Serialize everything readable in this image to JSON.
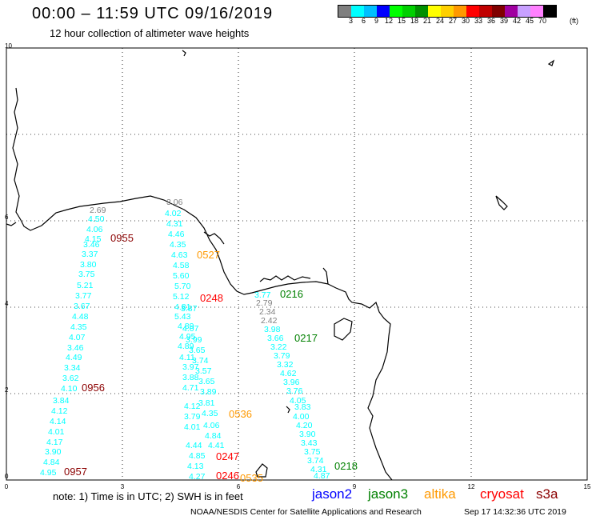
{
  "header": {
    "title": "00:00 – 11:59 UTC 09/16/2019",
    "subtitle": "12 hour collection of altimeter wave heights"
  },
  "scale": {
    "unit": "(ft)",
    "colors": [
      "#7f7f7f",
      "#00ffff",
      "#00bfff",
      "#0000ff",
      "#00ff00",
      "#00d000",
      "#009000",
      "#ffff00",
      "#ffd000",
      "#ff9900",
      "#ff0000",
      "#c00000",
      "#800000",
      "#a000a0",
      "#c8a0ff",
      "#ff80ff",
      "#000000"
    ],
    "labels": [
      "3",
      "6",
      "9",
      "12",
      "15",
      "18",
      "21",
      "24",
      "27",
      "30",
      "33",
      "36",
      "39",
      "42",
      "45",
      "70"
    ]
  },
  "axes": {
    "x_ticks": [
      "0",
      "3",
      "6",
      "9",
      "12",
      "15"
    ],
    "y_ticks": [
      "10",
      "6",
      "4",
      "2",
      "0"
    ]
  },
  "wave_heights": [
    {
      "text": "2.69",
      "color": "#7f7f7f"
    },
    {
      "text": "4.50",
      "color": "#00ffff"
    },
    {
      "text": "4.06",
      "color": "#00ffff"
    },
    {
      "text": "4.15",
      "color": "#00ffff"
    },
    {
      "text": "3.46",
      "color": "#00ffff"
    },
    {
      "text": "3.37",
      "color": "#00ffff"
    },
    {
      "text": "3.80",
      "color": "#00ffff"
    },
    {
      "text": "3.75",
      "color": "#00ffff"
    },
    {
      "text": "5.21",
      "color": "#00ffff"
    },
    {
      "text": "3.77",
      "color": "#00ffff"
    },
    {
      "text": "3.67",
      "color": "#00ffff"
    },
    {
      "text": "4.48",
      "color": "#00ffff"
    },
    {
      "text": "4.35",
      "color": "#00ffff"
    },
    {
      "text": "4.07",
      "color": "#00ffff"
    },
    {
      "text": "3.46",
      "color": "#00ffff"
    },
    {
      "text": "4.49",
      "color": "#00ffff"
    },
    {
      "text": "3.34",
      "color": "#00ffff"
    },
    {
      "text": "3.62",
      "color": "#00ffff"
    },
    {
      "text": "4.10",
      "color": "#00ffff"
    },
    {
      "text": "3.84",
      "color": "#00ffff"
    },
    {
      "text": "4.12",
      "color": "#00ffff"
    },
    {
      "text": "4.14",
      "color": "#00ffff"
    },
    {
      "text": "4.01",
      "color": "#00ffff"
    },
    {
      "text": "4.17",
      "color": "#00ffff"
    },
    {
      "text": "3.90",
      "color": "#00ffff"
    },
    {
      "text": "4.84",
      "color": "#00ffff"
    },
    {
      "text": "4.95",
      "color": "#00ffff"
    },
    {
      "text": "3.06",
      "color": "#7f7f7f"
    },
    {
      "text": "4.02",
      "color": "#00ffff"
    },
    {
      "text": "4.31",
      "color": "#00ffff"
    },
    {
      "text": "4.46",
      "color": "#00ffff"
    },
    {
      "text": "4.35",
      "color": "#00ffff"
    },
    {
      "text": "4.63",
      "color": "#00ffff"
    },
    {
      "text": "4.58",
      "color": "#00ffff"
    },
    {
      "text": "5.60",
      "color": "#00ffff"
    },
    {
      "text": "5.70",
      "color": "#00ffff"
    },
    {
      "text": "5.12",
      "color": "#00ffff"
    },
    {
      "text": "4.81",
      "color": "#00ffff"
    },
    {
      "text": "5.43",
      "color": "#00ffff"
    },
    {
      "text": "3.87",
      "color": "#00ffff"
    },
    {
      "text": "4.07",
      "color": "#00ffff"
    },
    {
      "text": "4.89",
      "color": "#00ffff"
    },
    {
      "text": "3.99",
      "color": "#00ffff"
    },
    {
      "text": "4.95",
      "color": "#00ffff"
    },
    {
      "text": "3.65",
      "color": "#00ffff"
    },
    {
      "text": "4.89",
      "color": "#00ffff"
    },
    {
      "text": "3.74",
      "color": "#00ffff"
    },
    {
      "text": "4.11",
      "color": "#00ffff"
    },
    {
      "text": "3.57",
      "color": "#00ffff"
    },
    {
      "text": "3.97",
      "color": "#00ffff"
    },
    {
      "text": "3.65",
      "color": "#00ffff"
    },
    {
      "text": "3.88",
      "color": "#00ffff"
    },
    {
      "text": "3.89",
      "color": "#00ffff"
    },
    {
      "text": "4.71",
      "color": "#00ffff"
    },
    {
      "text": "3.81",
      "color": "#00ffff"
    },
    {
      "text": "4.12",
      "color": "#00ffff"
    },
    {
      "text": "4.35",
      "color": "#00ffff"
    },
    {
      "text": "3.79",
      "color": "#00ffff"
    },
    {
      "text": "4.06",
      "color": "#00ffff"
    },
    {
      "text": "4.01",
      "color": "#00ffff"
    },
    {
      "text": "4.84",
      "color": "#00ffff"
    },
    {
      "text": "4.44",
      "color": "#00ffff"
    },
    {
      "text": "4.41",
      "color": "#00ffff"
    },
    {
      "text": "4.13",
      "color": "#00ffff"
    },
    {
      "text": "4.85",
      "color": "#00ffff"
    },
    {
      "text": "4.27",
      "color": "#00ffff"
    },
    {
      "text": "4.35",
      "color": "#00ffff"
    },
    {
      "text": "4.99",
      "color": "#00ffff"
    },
    {
      "text": "2.79",
      "color": "#7f7f7f"
    },
    {
      "text": "2.34",
      "color": "#7f7f7f"
    },
    {
      "text": "2.42",
      "color": "#7f7f7f"
    },
    {
      "text": "3.98",
      "color": "#00ffff"
    },
    {
      "text": "3.66",
      "color": "#00ffff"
    },
    {
      "text": "3.22",
      "color": "#00ffff"
    },
    {
      "text": "3.79",
      "color": "#00ffff"
    },
    {
      "text": "3.32",
      "color": "#00ffff"
    },
    {
      "text": "4.62",
      "color": "#00ffff"
    },
    {
      "text": "3.96",
      "color": "#00ffff"
    },
    {
      "text": "3.76",
      "color": "#00ffff"
    },
    {
      "text": "4.05",
      "color": "#00ffff"
    },
    {
      "text": "3.83",
      "color": "#00ffff"
    },
    {
      "text": "4.00",
      "color": "#00ffff"
    },
    {
      "text": "4.20",
      "color": "#00ffff"
    },
    {
      "text": "3.90",
      "color": "#00ffff"
    },
    {
      "text": "3.43",
      "color": "#00ffff"
    },
    {
      "text": "3.75",
      "color": "#00ffff"
    },
    {
      "text": "3.74",
      "color": "#00ffff"
    },
    {
      "text": "4.31",
      "color": "#00ffff"
    },
    {
      "text": "4.87",
      "color": "#00ffff"
    },
    {
      "text": "3.77",
      "color": "#00ffff"
    }
  ],
  "pass_times": [
    {
      "text": "0955",
      "color": "#8b0000"
    },
    {
      "text": "0527",
      "color": "#ff9900"
    },
    {
      "text": "0248",
      "color": "#ff0000"
    },
    {
      "text": "0216",
      "color": "#008000"
    },
    {
      "text": "0217",
      "color": "#008000"
    },
    {
      "text": "0956",
      "color": "#8b0000"
    },
    {
      "text": "0536",
      "color": "#ff9900"
    },
    {
      "text": "0247",
      "color": "#ff0000"
    },
    {
      "text": "0246",
      "color": "#ff0000"
    },
    {
      "text": "0535",
      "color": "#ff9900"
    },
    {
      "text": "0957",
      "color": "#8b0000"
    },
    {
      "text": "0218",
      "color": "#008000"
    }
  ],
  "footer": {
    "note": "note:  1) Time is in UTC;  2) SWH is in feet",
    "satellites": [
      {
        "name": "jason2",
        "color": "#0000ff"
      },
      {
        "name": "jason3",
        "color": "#008000"
      },
      {
        "name": "altika",
        "color": "#ff9900"
      },
      {
        "name": "cryosat",
        "color": "#ff0000"
      },
      {
        "name": "s3a",
        "color": "#8b0000"
      }
    ],
    "credit": "NOAA/NESDIS Center for Satellite Applications and Research",
    "timestamp": "Sep 17 14:32:36 UTC 2019"
  }
}
